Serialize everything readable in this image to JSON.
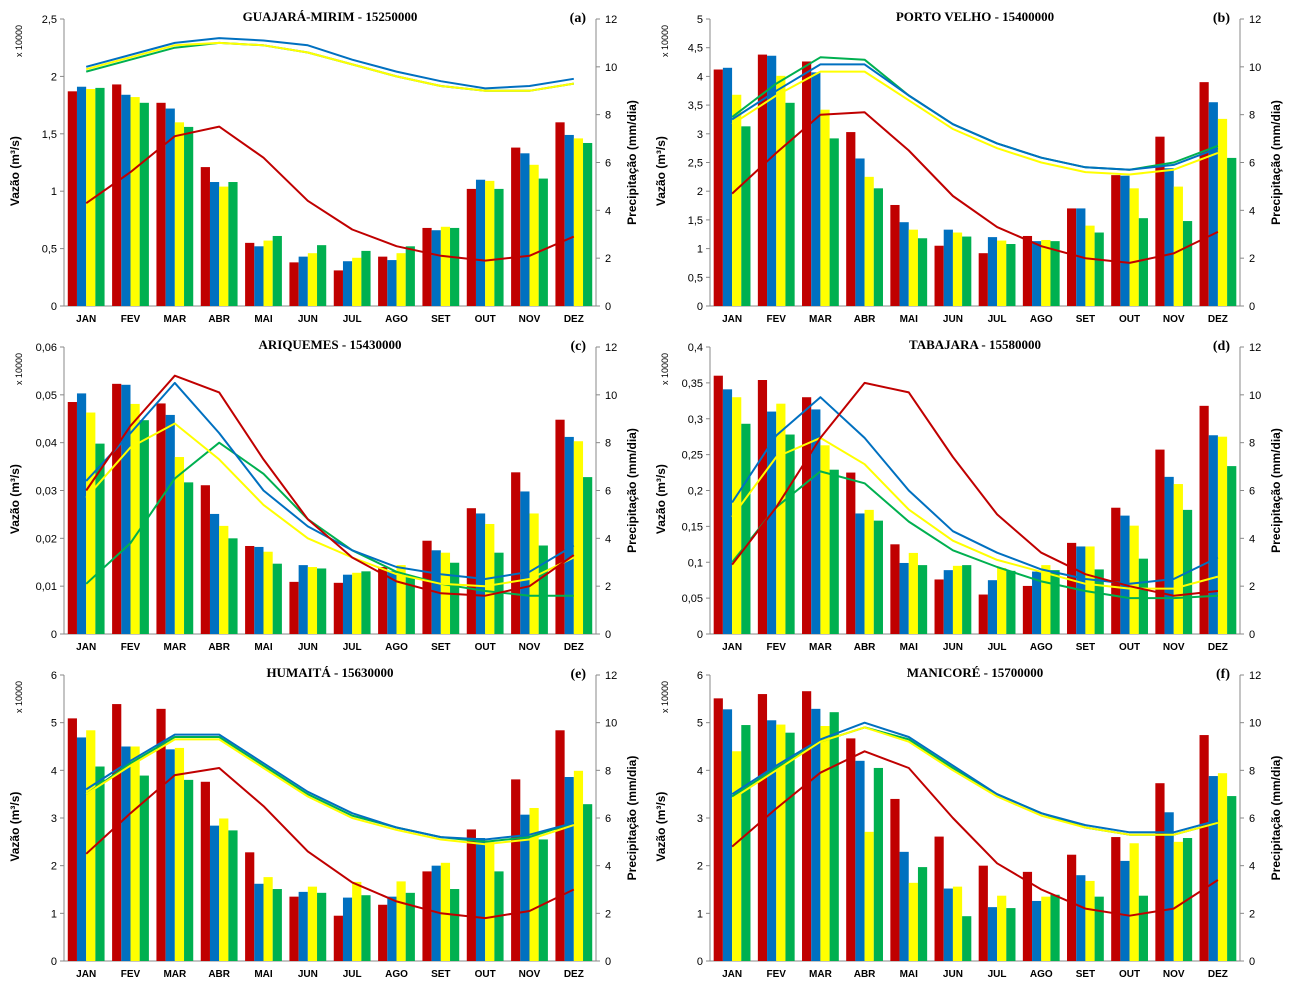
{
  "colors": [
    "#c00000",
    "#0070c0",
    "#ffff00",
    "#00b050"
  ],
  "axis_labels": {
    "left": "Vazão (m³/s)",
    "right": "Precipitação (mm/dia)",
    "multiplier": "x 10000"
  },
  "chart_data": [
    {
      "type": "bar",
      "title": "GUAJARÁ-MIRIM - 15250000",
      "tag": "(a)",
      "categories": [
        "JAN",
        "FEV",
        "MAR",
        "ABR",
        "MAI",
        "JUN",
        "JUL",
        "AGO",
        "SET",
        "OUT",
        "NOV",
        "DEZ"
      ],
      "ylim": [
        0,
        2.5
      ],
      "yticks": [
        "0",
        "0,5",
        "1",
        "1,5",
        "2",
        "2,5"
      ],
      "y2lim": [
        0,
        12
      ],
      "y2ticks": [
        "0",
        "2",
        "4",
        "6",
        "8",
        "10",
        "12"
      ],
      "series": [
        {
          "values": [
            1.87,
            1.93,
            1.77,
            1.21,
            0.55,
            0.38,
            0.31,
            0.43,
            0.68,
            1.02,
            1.38,
            1.6
          ]
        },
        {
          "values": [
            1.91,
            1.84,
            1.72,
            1.08,
            0.52,
            0.43,
            0.39,
            0.4,
            0.66,
            1.1,
            1.33,
            1.49
          ]
        },
        {
          "values": [
            1.89,
            1.82,
            1.6,
            1.04,
            0.57,
            0.46,
            0.42,
            0.46,
            0.69,
            1.09,
            1.23,
            1.46
          ]
        },
        {
          "values": [
            1.9,
            1.77,
            1.56,
            1.08,
            0.61,
            0.53,
            0.48,
            0.52,
            0.68,
            1.02,
            1.11,
            1.42
          ]
        }
      ],
      "lines": [
        {
          "values": [
            4.3,
            5.6,
            7.1,
            7.5,
            6.2,
            4.4,
            3.2,
            2.5,
            2.1,
            1.9,
            2.1,
            2.9
          ]
        },
        {
          "values": [
            10.0,
            10.5,
            11.0,
            11.2,
            11.1,
            10.9,
            10.3,
            9.8,
            9.4,
            9.1,
            9.2,
            9.5
          ]
        },
        {
          "values": [
            9.9,
            10.4,
            10.9,
            11.0,
            10.9,
            10.6,
            10.1,
            9.6,
            9.2,
            9.0,
            9.0,
            9.3
          ]
        },
        {
          "values": [
            9.8,
            10.3,
            10.8,
            11.0,
            10.9,
            10.6,
            10.1,
            9.6,
            9.2,
            9.0,
            9.0,
            9.3
          ]
        }
      ]
    },
    {
      "type": "bar",
      "title": "PORTO VELHO - 15400000",
      "tag": "(b)",
      "categories": [
        "JAN",
        "FEV",
        "MAR",
        "ABR",
        "MAI",
        "JUN",
        "JUL",
        "AGO",
        "SET",
        "OUT",
        "NOV",
        "DEZ"
      ],
      "ylim": [
        0,
        5
      ],
      "yticks": [
        "0",
        "0,5",
        "1",
        "1,5",
        "2",
        "2,5",
        "3",
        "3,5",
        "4",
        "4,5",
        "5"
      ],
      "y2lim": [
        0,
        12
      ],
      "y2ticks": [
        "0",
        "2",
        "4",
        "6",
        "8",
        "10",
        "12"
      ],
      "series": [
        {
          "values": [
            4.12,
            4.38,
            4.26,
            3.03,
            1.76,
            1.05,
            0.92,
            1.22,
            1.7,
            2.28,
            2.95,
            3.9
          ]
        },
        {
          "values": [
            4.15,
            4.36,
            4.07,
            2.57,
            1.46,
            1.33,
            1.2,
            1.13,
            1.7,
            2.27,
            2.4,
            3.55
          ]
        },
        {
          "values": [
            3.68,
            4.01,
            3.42,
            2.25,
            1.33,
            1.28,
            1.14,
            1.15,
            1.4,
            2.05,
            2.08,
            3.26
          ]
        },
        {
          "values": [
            3.13,
            3.54,
            2.92,
            2.05,
            1.18,
            1.21,
            1.08,
            1.13,
            1.28,
            1.53,
            1.48,
            2.58
          ]
        }
      ],
      "lines": [
        {
          "values": [
            4.7,
            6.4,
            8.0,
            8.1,
            6.5,
            4.6,
            3.3,
            2.5,
            2.0,
            1.8,
            2.2,
            3.1
          ]
        },
        {
          "values": [
            7.8,
            9.0,
            10.1,
            10.1,
            8.8,
            7.6,
            6.8,
            6.2,
            5.8,
            5.7,
            5.9,
            6.6
          ]
        },
        {
          "values": [
            7.6,
            8.8,
            9.8,
            9.8,
            8.6,
            7.4,
            6.6,
            6.0,
            5.6,
            5.5,
            5.7,
            6.4
          ]
        },
        {
          "values": [
            7.9,
            9.3,
            10.4,
            10.3,
            8.8,
            7.6,
            6.8,
            6.2,
            5.8,
            5.7,
            6.0,
            6.7
          ]
        }
      ]
    },
    {
      "type": "bar",
      "title": "ARIQUEMES - 15430000",
      "tag": "(c)",
      "categories": [
        "JAN",
        "FEV",
        "MAR",
        "ABR",
        "MAI",
        "JUN",
        "JUL",
        "AGO",
        "SET",
        "OUT",
        "NOV",
        "DEZ"
      ],
      "ylim": [
        0,
        0.06
      ],
      "yticks": [
        "0",
        "0,01",
        "0,02",
        "0,03",
        "0,04",
        "0,05",
        "0,06"
      ],
      "y2lim": [
        0,
        12
      ],
      "y2ticks": [
        "0",
        "2",
        "4",
        "6",
        "8",
        "10",
        "12"
      ],
      "series": [
        {
          "values": [
            0.0485,
            0.0523,
            0.0482,
            0.0311,
            0.0184,
            0.0109,
            0.0107,
            0.014,
            0.0195,
            0.0263,
            0.0338,
            0.0448
          ]
        },
        {
          "values": [
            0.0503,
            0.0521,
            0.0458,
            0.0251,
            0.0182,
            0.0144,
            0.0124,
            0.0132,
            0.0175,
            0.0252,
            0.0298,
            0.0412
          ]
        },
        {
          "values": [
            0.0463,
            0.0481,
            0.037,
            0.0226,
            0.0172,
            0.014,
            0.0128,
            0.0144,
            0.017,
            0.023,
            0.0252,
            0.0403
          ]
        },
        {
          "values": [
            0.0398,
            0.0447,
            0.0317,
            0.02,
            0.0147,
            0.0137,
            0.0131,
            0.0121,
            0.0149,
            0.017,
            0.0185,
            0.0328
          ]
        }
      ],
      "lines": [
        {
          "values": [
            6.0,
            8.7,
            10.8,
            10.1,
            7.3,
            4.8,
            3.2,
            2.2,
            1.7,
            1.6,
            2.0,
            3.3
          ]
        },
        {
          "values": [
            6.4,
            8.4,
            10.5,
            8.4,
            6.0,
            4.5,
            3.5,
            2.8,
            2.5,
            2.3,
            2.6,
            3.7
          ]
        },
        {
          "values": [
            5.7,
            7.8,
            8.8,
            7.3,
            5.4,
            4.0,
            3.2,
            2.5,
            2.1,
            2.0,
            2.3,
            3.2
          ]
        },
        {
          "values": [
            2.1,
            3.8,
            6.5,
            8.0,
            6.7,
            4.8,
            3.5,
            2.6,
            2.1,
            1.8,
            1.6,
            1.6
          ]
        }
      ]
    },
    {
      "type": "bar",
      "title": "TABAJARA - 15580000",
      "tag": "(d)",
      "categories": [
        "JAN",
        "FEV",
        "MAR",
        "ABR",
        "MAI",
        "JUN",
        "JUL",
        "AGO",
        "SET",
        "OUT",
        "NOV",
        "DEZ"
      ],
      "ylim": [
        0,
        0.4
      ],
      "yticks": [
        "0",
        "0,05",
        "0,1",
        "0,15",
        "0,2",
        "0,25",
        "0,3",
        "0,35",
        "0,4"
      ],
      "y2lim": [
        0,
        12
      ],
      "y2ticks": [
        "0",
        "2",
        "4",
        "6",
        "8",
        "10",
        "12"
      ],
      "series": [
        {
          "values": [
            0.36,
            0.354,
            0.33,
            0.225,
            0.125,
            0.076,
            0.055,
            0.067,
            0.127,
            0.176,
            0.257,
            0.318
          ]
        },
        {
          "values": [
            0.341,
            0.31,
            0.313,
            0.168,
            0.099,
            0.089,
            0.075,
            0.087,
            0.122,
            0.165,
            0.219,
            0.277
          ]
        },
        {
          "values": [
            0.33,
            0.321,
            0.263,
            0.173,
            0.113,
            0.095,
            0.092,
            0.096,
            0.122,
            0.151,
            0.209,
            0.275
          ]
        },
        {
          "values": [
            0.293,
            0.278,
            0.229,
            0.158,
            0.096,
            0.096,
            0.088,
            0.089,
            0.09,
            0.105,
            0.173,
            0.234
          ]
        }
      ],
      "lines": [
        {
          "values": [
            2.9,
            5.3,
            8.2,
            10.5,
            10.1,
            7.4,
            5.0,
            3.4,
            2.5,
            2.0,
            1.6,
            1.8
          ]
        },
        {
          "values": [
            5.5,
            8.3,
            9.9,
            8.2,
            6.0,
            4.3,
            3.4,
            2.7,
            2.3,
            2.1,
            2.3,
            3.2
          ]
        },
        {
          "values": [
            4.9,
            7.4,
            8.2,
            7.1,
            5.2,
            3.9,
            3.1,
            2.6,
            2.1,
            1.9,
            1.9,
            2.4
          ]
        },
        {
          "values": [
            3.0,
            5.3,
            6.8,
            6.3,
            4.7,
            3.5,
            2.8,
            2.2,
            1.8,
            1.5,
            1.5,
            1.6
          ]
        }
      ]
    },
    {
      "type": "bar",
      "title": "HUMAITÁ - 15630000",
      "tag": "(e)",
      "categories": [
        "JAN",
        "FEV",
        "MAR",
        "ABR",
        "MAI",
        "JUN",
        "JUL",
        "AGO",
        "SET",
        "OUT",
        "NOV",
        "DEZ"
      ],
      "ylim": [
        0,
        6
      ],
      "yticks": [
        "0",
        "1",
        "2",
        "3",
        "4",
        "5",
        "6"
      ],
      "y2lim": [
        0,
        12
      ],
      "y2ticks": [
        "0",
        "2",
        "4",
        "6",
        "8",
        "10",
        "12"
      ],
      "series": [
        {
          "values": [
            5.09,
            5.39,
            5.29,
            3.76,
            2.28,
            1.35,
            0.95,
            1.18,
            1.88,
            2.76,
            3.81,
            4.84
          ]
        },
        {
          "values": [
            4.69,
            4.5,
            4.44,
            2.84,
            1.62,
            1.45,
            1.33,
            1.35,
            2.0,
            2.58,
            3.07,
            3.86
          ]
        },
        {
          "values": [
            4.84,
            4.5,
            4.47,
            2.99,
            1.76,
            1.56,
            1.66,
            1.67,
            2.06,
            2.53,
            3.21,
            3.99
          ]
        },
        {
          "values": [
            4.08,
            3.89,
            3.8,
            2.74,
            1.51,
            1.43,
            1.38,
            1.43,
            1.51,
            1.88,
            2.55,
            3.29
          ]
        }
      ],
      "lines": [
        {
          "values": [
            4.5,
            6.2,
            7.8,
            8.1,
            6.5,
            4.6,
            3.3,
            2.5,
            2.0,
            1.8,
            2.1,
            3.0
          ]
        },
        {
          "values": [
            7.2,
            8.4,
            9.5,
            9.5,
            8.3,
            7.1,
            6.2,
            5.6,
            5.2,
            5.1,
            5.3,
            5.8
          ]
        },
        {
          "values": [
            7.0,
            8.2,
            9.3,
            9.3,
            8.1,
            6.9,
            6.0,
            5.5,
            5.1,
            4.9,
            5.1,
            5.7
          ]
        },
        {
          "values": [
            7.0,
            8.3,
            9.4,
            9.4,
            8.2,
            7.0,
            6.1,
            5.6,
            5.2,
            5.0,
            5.2,
            5.8
          ]
        }
      ]
    },
    {
      "type": "bar",
      "title": "MANICORÉ - 15700000",
      "tag": "(f)",
      "categories": [
        "JAN",
        "FEV",
        "MAR",
        "ABR",
        "MAI",
        "JUN",
        "JUL",
        "AGO",
        "SET",
        "OUT",
        "NOV",
        "DEZ"
      ],
      "ylim": [
        0,
        6
      ],
      "yticks": [
        "0",
        "1",
        "2",
        "3",
        "4",
        "5",
        "6"
      ],
      "y2lim": [
        0,
        12
      ],
      "y2ticks": [
        "0",
        "2",
        "4",
        "6",
        "8",
        "10",
        "12"
      ],
      "series": [
        {
          "values": [
            5.51,
            5.6,
            5.66,
            4.67,
            3.4,
            2.61,
            2.0,
            1.87,
            2.23,
            2.6,
            3.73,
            4.74
          ]
        },
        {
          "values": [
            5.28,
            5.05,
            5.29,
            4.2,
            2.29,
            1.52,
            1.13,
            1.26,
            1.8,
            2.1,
            3.12,
            3.88
          ]
        },
        {
          "values": [
            4.4,
            4.96,
            4.93,
            2.71,
            1.64,
            1.56,
            1.37,
            1.35,
            1.68,
            2.47,
            2.5,
            3.94
          ]
        },
        {
          "values": [
            4.95,
            4.79,
            5.22,
            4.05,
            1.97,
            0.94,
            1.11,
            1.39,
            1.35,
            1.37,
            2.58,
            3.46
          ]
        }
      ],
      "lines": [
        {
          "values": [
            4.8,
            6.4,
            7.9,
            8.8,
            8.1,
            6.0,
            4.1,
            3.0,
            2.2,
            1.9,
            2.2,
            3.4
          ]
        },
        {
          "values": [
            7.0,
            8.2,
            9.3,
            10.0,
            9.4,
            8.2,
            7.0,
            6.2,
            5.7,
            5.4,
            5.4,
            5.9
          ]
        },
        {
          "values": [
            6.8,
            8.0,
            9.2,
            9.8,
            9.2,
            8.0,
            6.9,
            6.1,
            5.6,
            5.3,
            5.3,
            5.8
          ]
        },
        {
          "values": [
            6.9,
            8.1,
            9.2,
            9.8,
            9.3,
            8.1,
            7.0,
            6.2,
            5.6,
            5.3,
            5.3,
            5.8
          ]
        }
      ]
    }
  ]
}
